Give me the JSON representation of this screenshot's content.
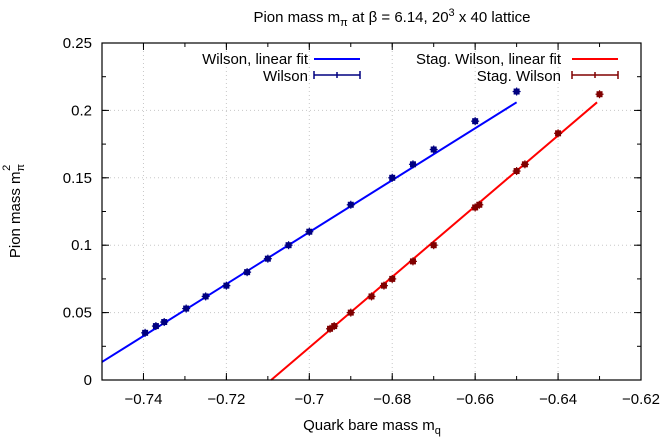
{
  "chart_data": {
    "type": "scatter",
    "title": "Pion mass m_π at β = 6.14, 20^3 x 40 lattice",
    "title_parts": {
      "main": "Pion mass m",
      "sub": "π",
      "mid": " at β = 6.14, 20",
      "sup": "3",
      "end": " x 40 lattice"
    },
    "xlabel": "Quark bare mass m_q",
    "xlabel_parts": {
      "main": "Quark bare mass m",
      "sub": "q"
    },
    "ylabel": "Pion mass m_π^2",
    "ylabel_parts": {
      "main": "Pion mass m",
      "sub": "π",
      "sup": "2"
    },
    "xlim": [
      -0.75,
      -0.62
    ],
    "ylim": [
      0,
      0.25
    ],
    "xticks": [
      -0.74,
      -0.72,
      -0.7,
      -0.68,
      -0.66,
      -0.64,
      -0.62
    ],
    "xtick_labels": [
      "−0.74",
      "−0.72",
      "−0.7",
      "−0.68",
      "−0.66",
      "−0.64",
      "−0.62"
    ],
    "yticks": [
      0,
      0.05,
      0.1,
      0.15,
      0.2,
      0.25
    ],
    "ytick_labels": [
      "0",
      "0.05",
      "0.1",
      "0.15",
      "0.2",
      "0.25"
    ],
    "grid": true,
    "legend_position": "top",
    "series": [
      {
        "name": "Wilson, linear fit",
        "kind": "line",
        "color": "#0000ff",
        "x": [
          -0.75,
          -0.65
        ],
        "y": [
          0.0134,
          0.206
        ]
      },
      {
        "name": "Wilson",
        "kind": "errorbar",
        "color": "#000080",
        "x": [
          -0.7396,
          -0.737,
          -0.735,
          -0.7297,
          -0.725,
          -0.72,
          -0.715,
          -0.71,
          -0.705,
          -0.7,
          -0.69,
          -0.68,
          -0.675,
          -0.67,
          -0.66,
          -0.65
        ],
        "y": [
          0.035,
          0.04,
          0.043,
          0.053,
          0.062,
          0.07,
          0.08,
          0.09,
          0.1,
          0.11,
          0.13,
          0.15,
          0.16,
          0.171,
          0.192,
          0.214
        ]
      },
      {
        "name": "Stag. Wilson, linear fit",
        "kind": "line",
        "color": "#ff0000",
        "x": [
          -0.7092,
          -0.6306
        ],
        "y": [
          0.0,
          0.206
        ]
      },
      {
        "name": "Stag. Wilson",
        "kind": "errorbar",
        "color": "#800000",
        "x": [
          -0.695,
          -0.694,
          -0.69,
          -0.685,
          -0.682,
          -0.68,
          -0.675,
          -0.67,
          -0.66,
          -0.659,
          -0.65,
          -0.648,
          -0.64,
          -0.63
        ],
        "y": [
          0.038,
          0.04,
          0.05,
          0.062,
          0.07,
          0.075,
          0.088,
          0.1,
          0.128,
          0.13,
          0.155,
          0.16,
          0.183,
          0.212
        ]
      }
    ]
  },
  "legend": {
    "left": [
      {
        "label": "Wilson, linear fit",
        "color": "#0000ff",
        "kind": "line"
      },
      {
        "label": "Wilson",
        "color": "#000080",
        "kind": "errorbar"
      }
    ],
    "right": [
      {
        "label": "Stag. Wilson, linear fit",
        "color": "#ff0000",
        "kind": "line"
      },
      {
        "label": "Stag. Wilson",
        "color": "#800000",
        "kind": "errorbar"
      }
    ]
  }
}
